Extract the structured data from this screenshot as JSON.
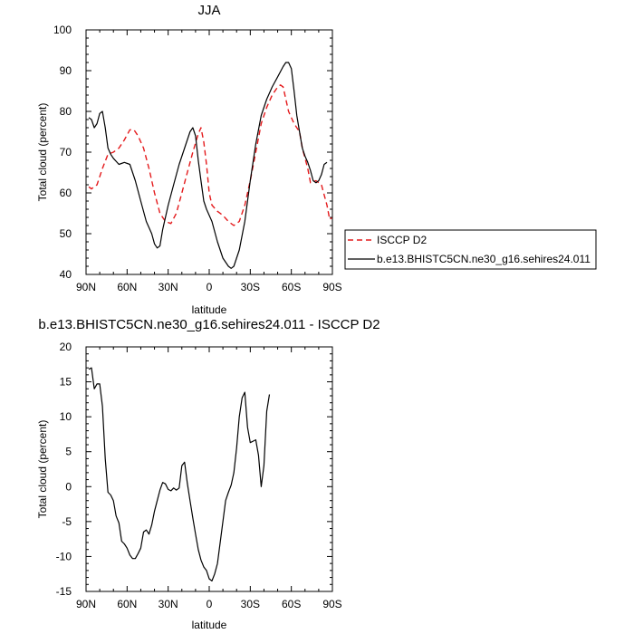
{
  "chart_data": [
    {
      "type": "line",
      "title": "JJA",
      "xlabel": "latitude",
      "ylabel": "Total cloud (percent)",
      "xlim": [
        -90,
        90
      ],
      "ylim": [
        40,
        100
      ],
      "x_ticks": [
        {
          "value": -90,
          "label": "90N"
        },
        {
          "value": -60,
          "label": "60N"
        },
        {
          "value": -30,
          "label": "30N"
        },
        {
          "value": 0,
          "label": "0"
        },
        {
          "value": 30,
          "label": "30S"
        },
        {
          "value": 60,
          "label": "60S"
        },
        {
          "value": 90,
          "label": "90S"
        }
      ],
      "y_ticks": [
        40,
        50,
        60,
        70,
        80,
        90,
        100
      ],
      "legend_position": "right",
      "series": [
        {
          "name": "ISCCP D2",
          "color": "#e41a1c",
          "dash": "dashed",
          "points": [
            [
              -88,
              61.5
            ],
            [
              -86,
              61
            ],
            [
              -82,
              62
            ],
            [
              -78,
              66
            ],
            [
              -74,
              69.5
            ],
            [
              -70,
              70
            ],
            [
              -66,
              71
            ],
            [
              -62,
              73
            ],
            [
              -58,
              75.5
            ],
            [
              -55,
              75.5
            ],
            [
              -52,
              74
            ],
            [
              -48,
              71
            ],
            [
              -44,
              66
            ],
            [
              -40,
              60
            ],
            [
              -36,
              55
            ],
            [
              -32,
              53
            ],
            [
              -28,
              52.5
            ],
            [
              -24,
              55
            ],
            [
              -20,
              60
            ],
            [
              -16,
              65
            ],
            [
              -12,
              70
            ],
            [
              -8,
              74.5
            ],
            [
              -6,
              76
            ],
            [
              -4,
              72.5
            ],
            [
              -2,
              67
            ],
            [
              0,
              60
            ],
            [
              2,
              57
            ],
            [
              6,
              55.5
            ],
            [
              10,
              54.5
            ],
            [
              14,
              53
            ],
            [
              18,
              52
            ],
            [
              22,
              53
            ],
            [
              26,
              57
            ],
            [
              30,
              63
            ],
            [
              34,
              70
            ],
            [
              38,
              77
            ],
            [
              42,
              81
            ],
            [
              46,
              84
            ],
            [
              50,
              86
            ],
            [
              52,
              86.5
            ],
            [
              54,
              86
            ],
            [
              56,
              83
            ],
            [
              58,
              80
            ],
            [
              62,
              77
            ],
            [
              66,
              75
            ],
            [
              68,
              71
            ],
            [
              72,
              66
            ],
            [
              74,
              62.5
            ],
            [
              78,
              63
            ],
            [
              82,
              62
            ],
            [
              86,
              57
            ],
            [
              88,
              53.5
            ],
            [
              90,
              54
            ]
          ]
        },
        {
          "name": "b.e13.BHISTC5CN.ne30_g16.sehires24.011",
          "color": "#000000",
          "dash": "solid",
          "points": [
            [
              -88,
              78.5
            ],
            [
              -86,
              78
            ],
            [
              -84,
              76
            ],
            [
              -82,
              77
            ],
            [
              -80,
              79.5
            ],
            [
              -78,
              80
            ],
            [
              -76,
              76
            ],
            [
              -74,
              71
            ],
            [
              -72,
              69.5
            ],
            [
              -70,
              68.5
            ],
            [
              -66,
              67
            ],
            [
              -62,
              67.5
            ],
            [
              -58,
              67
            ],
            [
              -54,
              63
            ],
            [
              -50,
              58
            ],
            [
              -46,
              53
            ],
            [
              -42,
              50
            ],
            [
              -40,
              47.5
            ],
            [
              -38,
              46.5
            ],
            [
              -36,
              47
            ],
            [
              -34,
              51
            ],
            [
              -30,
              57
            ],
            [
              -26,
              62
            ],
            [
              -22,
              67
            ],
            [
              -18,
              71
            ],
            [
              -14,
              75
            ],
            [
              -12,
              76
            ],
            [
              -10,
              74
            ],
            [
              -8,
              68
            ],
            [
              -6,
              63
            ],
            [
              -4,
              58
            ],
            [
              -2,
              56
            ],
            [
              2,
              53
            ],
            [
              6,
              48
            ],
            [
              10,
              44
            ],
            [
              14,
              42
            ],
            [
              16,
              41.5
            ],
            [
              18,
              42
            ],
            [
              22,
              46
            ],
            [
              26,
              53
            ],
            [
              30,
              63
            ],
            [
              34,
              72
            ],
            [
              38,
              79
            ],
            [
              42,
              83
            ],
            [
              46,
              86
            ],
            [
              50,
              88.5
            ],
            [
              54,
              91
            ],
            [
              56,
              92
            ],
            [
              58,
              92
            ],
            [
              60,
              90.5
            ],
            [
              62,
              85
            ],
            [
              64,
              79
            ],
            [
              66,
              75
            ],
            [
              68,
              71
            ],
            [
              70,
              69
            ],
            [
              72,
              67.5
            ],
            [
              74,
              65.5
            ],
            [
              76,
              63
            ],
            [
              78,
              62.5
            ],
            [
              80,
              63
            ],
            [
              82,
              64.5
            ],
            [
              84,
              67
            ],
            [
              86,
              67.5
            ]
          ]
        }
      ]
    },
    {
      "type": "line",
      "title": "b.e13.BHISTC5CN.ne30_g16.sehires24.011 - ISCCP D2",
      "xlabel": "latitude",
      "ylabel": "Total cloud (percent)",
      "xlim": [
        -90,
        90
      ],
      "ylim": [
        -15,
        20
      ],
      "x_ticks": [
        {
          "value": -90,
          "label": "90N"
        },
        {
          "value": -60,
          "label": "60N"
        },
        {
          "value": -30,
          "label": "30N"
        },
        {
          "value": 0,
          "label": "0"
        },
        {
          "value": 30,
          "label": "30S"
        },
        {
          "value": 60,
          "label": "60S"
        },
        {
          "value": 90,
          "label": "90S"
        }
      ],
      "y_ticks": [
        -15,
        -10,
        -5,
        0,
        5,
        10,
        15,
        20
      ],
      "series": [
        {
          "color": "#000000",
          "dash": "solid",
          "points": [
            [
              -88,
              16.8
            ],
            [
              -86,
              17
            ],
            [
              -84,
              14
            ],
            [
              -82,
              14.7
            ],
            [
              -80,
              14.7
            ],
            [
              -78,
              11.5
            ],
            [
              -76,
              4
            ],
            [
              -74,
              -0.8
            ],
            [
              -72,
              -1.2
            ],
            [
              -70,
              -2
            ],
            [
              -68,
              -4.2
            ],
            [
              -66,
              -5.2
            ],
            [
              -64,
              -7.8
            ],
            [
              -62,
              -8.2
            ],
            [
              -60,
              -8.8
            ],
            [
              -58,
              -9.8
            ],
            [
              -56,
              -10.3
            ],
            [
              -54,
              -10.3
            ],
            [
              -52,
              -9.6
            ],
            [
              -50,
              -8.8
            ],
            [
              -48,
              -6.5
            ],
            [
              -46,
              -6.2
            ],
            [
              -44,
              -6.8
            ],
            [
              -42,
              -5.5
            ],
            [
              -40,
              -3.5
            ],
            [
              -38,
              -2
            ],
            [
              -36,
              -0.5
            ],
            [
              -34,
              0.6
            ],
            [
              -32,
              0.4
            ],
            [
              -30,
              -0.4
            ],
            [
              -28,
              -0.6
            ],
            [
              -26,
              -0.2
            ],
            [
              -24,
              -0.5
            ],
            [
              -22,
              -0.2
            ],
            [
              -20,
              3
            ],
            [
              -18,
              3.5
            ],
            [
              -16,
              0.5
            ],
            [
              -14,
              -2
            ],
            [
              -12,
              -4.5
            ],
            [
              -10,
              -6.8
            ],
            [
              -8,
              -9
            ],
            [
              -6,
              -10.5
            ],
            [
              -4,
              -11.5
            ],
            [
              -2,
              -12
            ],
            [
              0,
              -13.2
            ],
            [
              2,
              -13.5
            ],
            [
              4,
              -12.5
            ],
            [
              6,
              -11
            ],
            [
              8,
              -8
            ],
            [
              10,
              -5
            ],
            [
              12,
              -2
            ],
            [
              14,
              -0.8
            ],
            [
              16,
              0.2
            ],
            [
              18,
              2
            ],
            [
              20,
              5.5
            ],
            [
              22,
              10
            ],
            [
              24,
              12.7
            ],
            [
              26,
              13.5
            ],
            [
              28,
              8.5
            ],
            [
              30,
              6.3
            ],
            [
              32,
              6.5
            ],
            [
              34,
              6.7
            ],
            [
              36,
              4.5
            ],
            [
              38,
              0
            ],
            [
              40,
              3
            ],
            [
              42,
              10.8
            ],
            [
              44,
              13.2
            ]
          ]
        }
      ]
    }
  ]
}
